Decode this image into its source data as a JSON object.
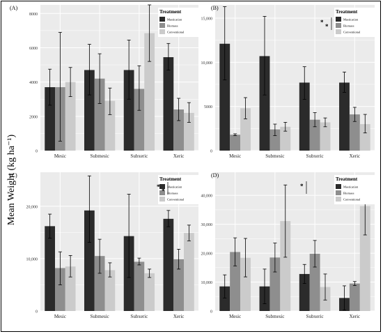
{
  "y_axis_label": "Mean Weight (kg ha⁻¹)",
  "colors": {
    "panel_bg": "#ebebeb",
    "grid": "#ffffff",
    "mastication": "#2b2b2b",
    "biomass": "#8e8e8e",
    "conventional": "#cbcbcb"
  },
  "legend_title": "Treatment",
  "chart_data": [
    {
      "type": "bar",
      "panel_label": "(A)",
      "categories": [
        "Mesic",
        "Submesic",
        "Subxeric",
        "Xeric"
      ],
      "ylim": [
        0,
        8500
      ],
      "yticks": [
        0,
        2000,
        4000,
        6000,
        8000
      ],
      "ytick_labels": [
        "0",
        "2000",
        "4000",
        "6000",
        "8000"
      ],
      "series": [
        {
          "name": "Mastication",
          "values": [
            3700,
            4700,
            4700,
            5450
          ],
          "err_low": [
            2650,
            3250,
            3000,
            4700
          ],
          "err_high": [
            4750,
            6200,
            6450,
            6250
          ]
        },
        {
          "name": "Biomass",
          "values": [
            3700,
            4200,
            3600,
            2400
          ],
          "err_low": [
            550,
            2750,
            2350,
            1750
          ],
          "err_high": [
            6900,
            5650,
            4950,
            3050
          ]
        },
        {
          "name": "Conventional",
          "values": [
            4000,
            2900,
            6850,
            2200
          ],
          "err_low": [
            3150,
            2100,
            5200,
            1650
          ],
          "err_high": [
            4850,
            3650,
            8500,
            2800
          ]
        }
      ],
      "significance": ""
    },
    {
      "type": "bar",
      "panel_label": "(B)",
      "categories": [
        "Mesic",
        "Submesic",
        "Subxeric",
        "Xeric"
      ],
      "ylim": [
        0,
        16500
      ],
      "yticks": [
        0,
        5000,
        10000,
        15000
      ],
      "ytick_labels": [
        "0",
        "5000",
        "10,000",
        "15,000"
      ],
      "series": [
        {
          "name": "Mastication",
          "values": [
            12100,
            10700,
            7700,
            7700
          ],
          "err_low": [
            8000,
            6300,
            5800,
            6600
          ],
          "err_high": [
            16300,
            15200,
            9500,
            8900
          ]
        },
        {
          "name": "Biomass",
          "values": [
            1800,
            2400,
            3500,
            4100
          ],
          "err_low": [
            1700,
            1700,
            2700,
            3300
          ],
          "err_high": [
            1900,
            3000,
            4300,
            4900
          ]
        },
        {
          "name": "Conventional",
          "values": [
            4800,
            2700,
            3200,
            3000
          ],
          "err_low": [
            3600,
            2200,
            2700,
            2000
          ],
          "err_high": [
            6000,
            3200,
            3700,
            4100
          ]
        }
      ],
      "significance": "* *"
    },
    {
      "type": "bar",
      "panel_label": "(C)",
      "categories": [
        "Mesic",
        "Submesic",
        "Subxeric",
        "Xeric"
      ],
      "ylim": [
        0,
        26500
      ],
      "yticks": [
        0,
        10000,
        20000
      ],
      "ytick_labels": [
        "0",
        "10,000",
        "20,000"
      ],
      "series": [
        {
          "name": "Mastication",
          "values": [
            16200,
            19200,
            14300,
            17600
          ],
          "err_low": [
            13900,
            13100,
            6400,
            16100
          ],
          "err_high": [
            18500,
            25800,
            22300,
            19200
          ]
        },
        {
          "name": "Biomass",
          "values": [
            8200,
            10500,
            9400,
            9900
          ],
          "err_low": [
            5000,
            7200,
            8800,
            8000
          ],
          "err_high": [
            11300,
            13700,
            10100,
            11800
          ]
        },
        {
          "name": "Conventional",
          "values": [
            8500,
            7800,
            7200,
            14900
          ],
          "err_low": [
            6500,
            6500,
            6400,
            13400
          ],
          "err_high": [
            10600,
            9200,
            8000,
            16400
          ]
        }
      ],
      "significance": "* *"
    },
    {
      "type": "bar",
      "panel_label": "(D)",
      "categories": [
        "Mesic",
        "Submesic",
        "Subxeric",
        "Xeric"
      ],
      "ylim": [
        0,
        48000
      ],
      "yticks": [
        0,
        10000,
        20000,
        30000,
        40000
      ],
      "ytick_labels": [
        "0",
        "10,000",
        "20,000",
        "30,000",
        "40,000"
      ],
      "series": [
        {
          "name": "Mastication",
          "values": [
            8500,
            8500,
            12800,
            4500
          ],
          "err_low": [
            4500,
            2500,
            9500,
            300
          ],
          "err_high": [
            12500,
            14500,
            16100,
            8700
          ]
        },
        {
          "name": "Biomass",
          "values": [
            20400,
            18500,
            19800,
            9500
          ],
          "err_low": [
            15600,
            13500,
            15200,
            8800
          ],
          "err_high": [
            25300,
            23500,
            24400,
            10200
          ]
        },
        {
          "name": "Conventional",
          "values": [
            18400,
            31100,
            8300,
            36300
          ],
          "err_low": [
            11800,
            18600,
            3800,
            26300
          ],
          "err_high": [
            25100,
            43600,
            12800,
            46300
          ]
        }
      ],
      "significance": "*"
    }
  ]
}
